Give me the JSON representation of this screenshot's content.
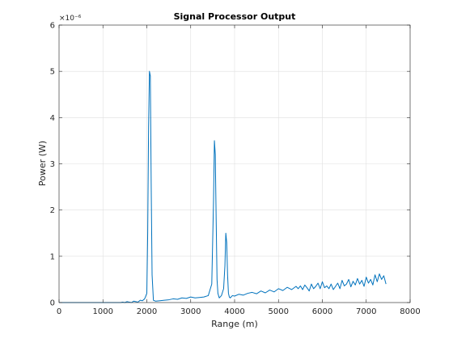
{
  "chart_data": {
    "type": "line",
    "title": "Signal Processor Output",
    "xlabel": "Range (m)",
    "ylabel": "Power (W)",
    "xlim": [
      0,
      8000
    ],
    "ylim": [
      0,
      6
    ],
    "y_exponent_label": "×10⁻⁶",
    "xticks": [
      "0",
      "1000",
      "2000",
      "3000",
      "4000",
      "5000",
      "6000",
      "7000",
      "8000"
    ],
    "yticks": [
      "0",
      "1",
      "2",
      "3",
      "4",
      "5",
      "6"
    ],
    "grid": true,
    "colors": {
      "line": "#0072bd",
      "grid": "#dfdfdf",
      "axis": "#262626"
    },
    "series": [
      {
        "values_note": "y values in units of 1e-6 W",
        "x": [
          0,
          400,
          800,
          1200,
          1400,
          1450,
          1500,
          1550,
          1600,
          1650,
          1700,
          1750,
          1800,
          1850,
          1900,
          1950,
          2000,
          2020,
          2040,
          2060,
          2080,
          2100,
          2120,
          2150,
          2200,
          2300,
          2400,
          2500,
          2600,
          2700,
          2800,
          2900,
          3000,
          3100,
          3200,
          3300,
          3400,
          3480,
          3520,
          3540,
          3560,
          3580,
          3600,
          3620,
          3650,
          3700,
          3750,
          3780,
          3800,
          3820,
          3840,
          3860,
          3880,
          3900,
          3950,
          4000,
          4100,
          4200,
          4300,
          4400,
          4500,
          4600,
          4700,
          4800,
          4900,
          5000,
          5100,
          5200,
          5300,
          5400,
          5450,
          5500,
          5550,
          5600,
          5650,
          5700,
          5750,
          5800,
          5850,
          5900,
          5950,
          6000,
          6050,
          6100,
          6150,
          6200,
          6250,
          6300,
          6350,
          6400,
          6450,
          6500,
          6550,
          6600,
          6650,
          6700,
          6750,
          6800,
          6850,
          6900,
          6950,
          7000,
          7050,
          7100,
          7150,
          7200,
          7250,
          7300,
          7350,
          7400,
          7450
        ],
        "y": [
          0.0,
          0.0,
          0.0,
          0.0,
          0.0,
          0.01,
          0.0,
          0.02,
          0.01,
          0.0,
          0.03,
          0.02,
          0.01,
          0.05,
          0.04,
          0.08,
          0.2,
          1.5,
          3.8,
          5.0,
          4.9,
          2.5,
          0.6,
          0.05,
          0.03,
          0.04,
          0.05,
          0.06,
          0.08,
          0.07,
          0.1,
          0.09,
          0.12,
          0.1,
          0.11,
          0.12,
          0.15,
          0.4,
          2.2,
          3.5,
          3.2,
          1.8,
          0.5,
          0.2,
          0.1,
          0.15,
          0.3,
          0.8,
          1.5,
          1.3,
          0.6,
          0.2,
          0.12,
          0.1,
          0.15,
          0.14,
          0.18,
          0.16,
          0.2,
          0.22,
          0.19,
          0.25,
          0.21,
          0.27,
          0.23,
          0.3,
          0.26,
          0.33,
          0.28,
          0.35,
          0.3,
          0.36,
          0.28,
          0.38,
          0.32,
          0.25,
          0.4,
          0.3,
          0.35,
          0.42,
          0.3,
          0.45,
          0.32,
          0.36,
          0.3,
          0.4,
          0.28,
          0.35,
          0.42,
          0.3,
          0.48,
          0.36,
          0.4,
          0.5,
          0.34,
          0.46,
          0.38,
          0.52,
          0.4,
          0.48,
          0.35,
          0.55,
          0.42,
          0.5,
          0.38,
          0.6,
          0.45,
          0.62,
          0.5,
          0.58,
          0.4
        ]
      }
    ]
  }
}
